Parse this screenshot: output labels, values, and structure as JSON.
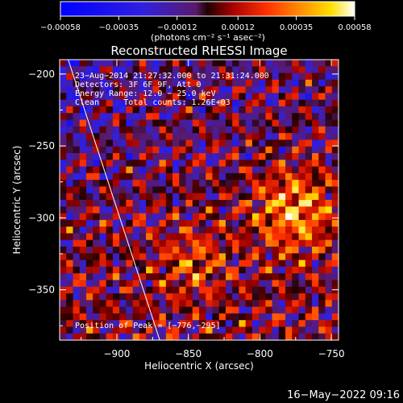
{
  "chart_data": {
    "type": "heatmap",
    "title": "Reconstructed RHESSI Image",
    "xlabel": "Heliocentric X (arcsec)",
    "ylabel": "Heliocentric Y (arcsec)",
    "xlim": [
      -940,
      -745
    ],
    "ylim": [
      -385,
      -190
    ],
    "x_ticks": [
      -900,
      -850,
      -800,
      -750
    ],
    "x_tick_labels": [
      "−900",
      "−850",
      "−800",
      "−750"
    ],
    "y_ticks": [
      -200,
      -250,
      -300,
      -350
    ],
    "y_tick_labels": [
      "−200",
      "−250",
      "−300",
      "−350"
    ],
    "colorbar": {
      "min": -0.00058,
      "max": 0.00058,
      "ticks": [
        -0.00058,
        -0.00035,
        -0.00012,
        0.00012,
        0.00035,
        0.00058
      ],
      "tick_labels": [
        "−0.00058",
        "−0.00035",
        "−0.00012",
        "0.00012",
        "0.00035",
        "0.00058"
      ],
      "unit_label": "(photons cm⁻² s⁻¹ asec⁻²)"
    },
    "annotations": [
      "23−Aug−2014 21:27:32.000 to 21:31:24.000",
      "Detectors: 3F 6F 9F, Att 0",
      "Energy Range: 12.0 − 25.0 keV",
      "Clean     Total counts: 1.26E+03"
    ],
    "peak_label": "Position of Peak = [−776,−295]",
    "peak": [
      -776,
      -295
    ],
    "limb_line": [
      [
        -934,
        -190
      ],
      [
        -870,
        -385
      ]
    ]
  },
  "footer": {
    "timestamp": "16−May−2022 09:16"
  },
  "colors": {
    "background": "#000000",
    "foreground": "#ffffff"
  }
}
